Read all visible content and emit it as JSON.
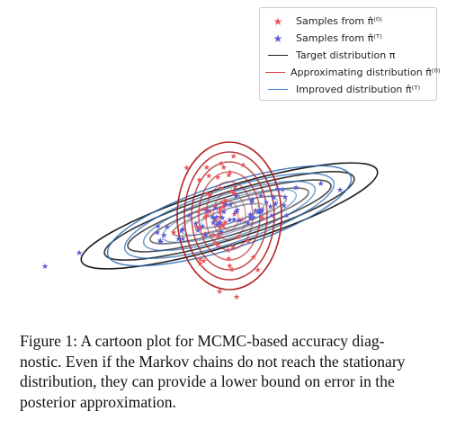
{
  "figure": {
    "legend": [
      {
        "kind": "marker",
        "color": "#e8545a",
        "text": "Samples from π̂⁽⁰⁾"
      },
      {
        "kind": "marker",
        "color": "#5b5bd8",
        "text": "Samples from π̂⁽ᵀ⁾"
      },
      {
        "kind": "line",
        "color": "#222222",
        "text": "Target distribution π"
      },
      {
        "kind": "line",
        "color": "#d9403a",
        "text": "Approximating distribution π̂⁽⁰⁾"
      },
      {
        "kind": "line",
        "color": "#4a86c6",
        "text": "Improved distribution π̂⁽ᵀ⁾"
      }
    ],
    "colors": {
      "target": "#111111",
      "approx": "#b01818",
      "improved": "#2f6db5",
      "approx_samples": "#e8545a",
      "improved_samples": "#5b5bd8"
    }
  },
  "caption": {
    "lines": [
      "Figure 1: A cartoon plot for MCMC-based accuracy diag-",
      "nostic. Even if the Markov chains do not reach the stationary",
      "distribution, they can provide a lower bound on error in the",
      "posterior approximation."
    ]
  }
}
